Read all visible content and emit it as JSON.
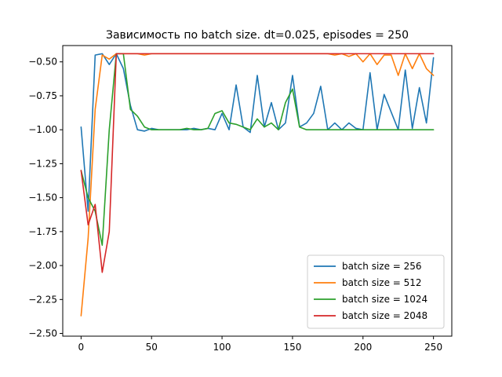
{
  "chart_data": {
    "type": "line",
    "title": "Зависимость по batch size. dt=0.025, episodes = 250",
    "xlabel": "",
    "ylabel": "",
    "xlim": [
      -13,
      263
    ],
    "ylim": [
      -2.52,
      -0.38
    ],
    "x_ticks": [
      0,
      50,
      100,
      150,
      200,
      250
    ],
    "x_tick_labels": [
      "0",
      "50",
      "100",
      "150",
      "200",
      "250"
    ],
    "y_ticks": [
      -0.5,
      -0.75,
      -1.0,
      -1.25,
      -1.5,
      -1.75,
      -2.0,
      -2.25,
      -2.5
    ],
    "y_tick_labels": [
      "−0.50",
      "−0.75",
      "−1.00",
      "−1.25",
      "−1.50",
      "−1.75",
      "−2.00",
      "−2.25",
      "−2.50"
    ],
    "grid": false,
    "legend_position": "bottom-right",
    "x": [
      0,
      5,
      10,
      15,
      20,
      25,
      30,
      35,
      40,
      45,
      50,
      55,
      60,
      65,
      70,
      75,
      80,
      85,
      90,
      95,
      100,
      105,
      110,
      115,
      120,
      125,
      130,
      135,
      140,
      145,
      150,
      155,
      160,
      165,
      170,
      175,
      180,
      185,
      190,
      195,
      200,
      205,
      210,
      215,
      220,
      225,
      230,
      235,
      240,
      245,
      250
    ],
    "series": [
      {
        "name": "batch size = 256",
        "color": "#1f77b4",
        "values": [
          -0.98,
          -1.6,
          -0.45,
          -0.44,
          -0.52,
          -0.44,
          -0.55,
          -0.82,
          -1.0,
          -1.01,
          -0.99,
          -1.0,
          -1.0,
          -1.0,
          -1.0,
          -1.0,
          -0.99,
          -1.0,
          -0.99,
          -1.0,
          -0.88,
          -1.0,
          -0.67,
          -0.98,
          -1.02,
          -0.6,
          -0.98,
          -0.8,
          -1.0,
          -0.95,
          -0.6,
          -0.98,
          -0.95,
          -0.88,
          -0.68,
          -1.0,
          -0.95,
          -1.0,
          -0.95,
          -0.99,
          -1.0,
          -0.58,
          -1.0,
          -0.74,
          -0.87,
          -1.0,
          -0.56,
          -0.99,
          -0.69,
          -0.95,
          -0.47
        ]
      },
      {
        "name": "batch size = 512",
        "color": "#ff7f0e",
        "values": [
          -2.37,
          -1.8,
          -0.85,
          -0.45,
          -0.48,
          -0.44,
          -0.44,
          -0.44,
          -0.44,
          -0.45,
          -0.44,
          -0.44,
          -0.44,
          -0.44,
          -0.44,
          -0.44,
          -0.44,
          -0.44,
          -0.44,
          -0.44,
          -0.44,
          -0.44,
          -0.44,
          -0.44,
          -0.44,
          -0.44,
          -0.44,
          -0.44,
          -0.44,
          -0.44,
          -0.44,
          -0.44,
          -0.44,
          -0.44,
          -0.44,
          -0.44,
          -0.45,
          -0.44,
          -0.46,
          -0.44,
          -0.5,
          -0.44,
          -0.52,
          -0.45,
          -0.45,
          -0.6,
          -0.44,
          -0.55,
          -0.44,
          -0.55,
          -0.6
        ]
      },
      {
        "name": "batch size = 1024",
        "color": "#2ca02c",
        "values": [
          -1.3,
          -1.5,
          -1.6,
          -1.85,
          -1.0,
          -0.44,
          -0.44,
          -0.85,
          -0.9,
          -0.98,
          -1.0,
          -1.0,
          -1.0,
          -1.0,
          -1.0,
          -0.99,
          -1.0,
          -1.0,
          -0.99,
          -0.88,
          -0.86,
          -0.95,
          -0.96,
          -0.98,
          -1.0,
          -0.92,
          -0.98,
          -0.95,
          -1.0,
          -0.8,
          -0.7,
          -0.98,
          -1.0,
          -1.0,
          -1.0,
          -1.0,
          -1.0,
          -1.0,
          -1.0,
          -1.0,
          -1.0,
          -1.0,
          -1.0,
          -1.0,
          -1.0,
          -1.0,
          -1.0,
          -1.0,
          -1.0,
          -1.0,
          -1.0
        ]
      },
      {
        "name": "batch size = 2048",
        "color": "#d62728",
        "values": [
          -1.3,
          -1.7,
          -1.55,
          -2.05,
          -1.75,
          -0.44,
          -0.44,
          -0.44,
          -0.44,
          -0.44,
          -0.44,
          -0.44,
          -0.44,
          -0.44,
          -0.44,
          -0.44,
          -0.44,
          -0.44,
          -0.44,
          -0.44,
          -0.44,
          -0.44,
          -0.44,
          -0.44,
          -0.44,
          -0.44,
          -0.44,
          -0.44,
          -0.44,
          -0.44,
          -0.44,
          -0.44,
          -0.44,
          -0.44,
          -0.44,
          -0.44,
          -0.44,
          -0.44,
          -0.44,
          -0.44,
          -0.44,
          -0.44,
          -0.44,
          -0.44,
          -0.44,
          -0.44,
          -0.44,
          -0.44,
          -0.44,
          -0.44,
          -0.44
        ]
      }
    ]
  }
}
